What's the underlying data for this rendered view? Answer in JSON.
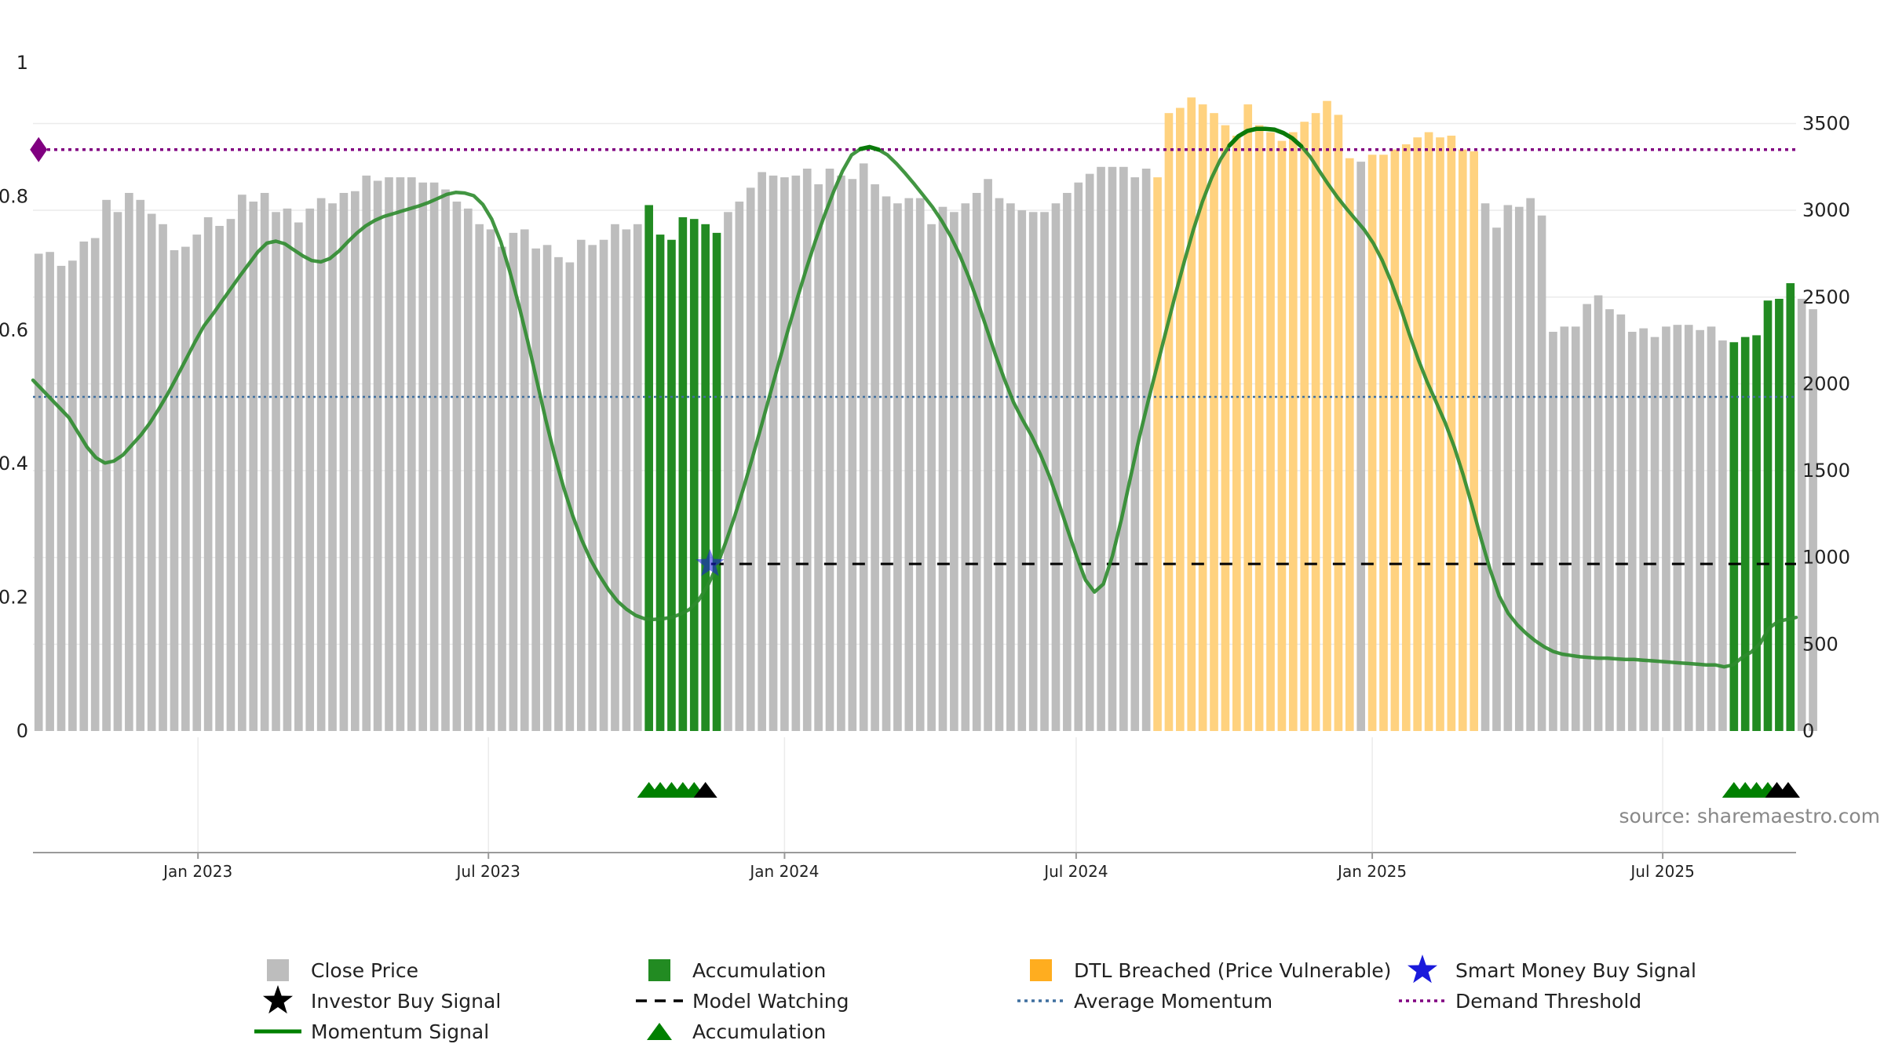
{
  "chart_data": {
    "type": "bar",
    "title": "",
    "source": "source: sharemaestro.com",
    "left_axis": {
      "ylim": [
        0,
        1
      ],
      "ticks": [
        "0",
        "0.2",
        "0.4",
        "0.6",
        "0.8",
        "1"
      ],
      "tick_values": [
        0,
        0.2,
        0.4,
        0.6,
        0.8,
        1
      ]
    },
    "right_axis": {
      "ylim": [
        0,
        3850
      ],
      "ticks": [
        "0",
        "500",
        "1000",
        "1500",
        "2000",
        "2500",
        "3000",
        "3500"
      ],
      "tick_values": [
        0,
        500,
        1000,
        1500,
        2000,
        2500,
        3000,
        3500
      ]
    },
    "x_axis": {
      "range": [
        0,
        156
      ],
      "tick_labels": [
        "Jan 2023",
        "Jul 2023",
        "Jan 2024",
        "Jul 2024",
        "Jan 2025",
        "Jul 2025"
      ],
      "tick_positions": [
        14.6,
        40.3,
        66.5,
        92.3,
        118.5,
        144.2
      ]
    },
    "series": [
      {
        "name": "Close Price",
        "axis": "right",
        "color": "#bdbdbd",
        "values": [
          2750,
          2760,
          2680,
          2710,
          2820,
          2840,
          3060,
          2990,
          3100,
          3060,
          2980,
          2920,
          2770,
          2790,
          2860,
          2960,
          2910,
          2950,
          3090,
          3050,
          3100,
          2990,
          3010,
          2930,
          3010,
          3070,
          3040,
          3100,
          3110,
          3200,
          3170,
          3190,
          3190,
          3190,
          3160,
          3160,
          3120,
          3050,
          3010,
          2920,
          2890,
          2790,
          2870,
          2890,
          2780,
          2800,
          2730,
          2700,
          2830,
          2800,
          2830,
          2920,
          2890,
          2920,
          3030,
          2860,
          2830,
          2960,
          2950,
          2920,
          2870,
          2990,
          3050,
          3130,
          3220,
          3200,
          3190,
          3200,
          3240,
          3150,
          3240,
          3200,
          3180,
          3270,
          3150,
          3080,
          3040,
          3070,
          3070,
          2920,
          3020,
          2990,
          3040,
          3100,
          3180,
          3070,
          3040,
          3000,
          2990,
          2990,
          3040,
          3100,
          3160,
          3210,
          3250,
          3250,
          3250,
          3190,
          3240,
          3190,
          3560,
          3590,
          3650,
          3610,
          3560,
          3490,
          3430,
          3610,
          3490,
          3450,
          3400,
          3450,
          3510,
          3560,
          3630,
          3550,
          3300,
          3280,
          3320,
          3320,
          3350,
          3380,
          3420,
          3450,
          3420,
          3430,
          3350,
          3340,
          3040,
          2900,
          3030,
          3020,
          3070,
          2970,
          2300,
          2330,
          2330,
          2460,
          2510,
          2430,
          2400,
          2300,
          2320,
          2270,
          2330,
          2340,
          2340,
          2310,
          2330,
          2250,
          2240,
          2270,
          2280,
          2480,
          2490,
          2580,
          2490,
          2430
        ]
      },
      {
        "name": "Momentum Signal",
        "axis": "left",
        "color": "#2e8b2e",
        "values": [
          0.525,
          0.511,
          0.497,
          0.483,
          0.469,
          0.447,
          0.425,
          0.409,
          0.401,
          0.404,
          0.413,
          0.428,
          0.443,
          0.461,
          0.482,
          0.505,
          0.53,
          0.556,
          0.582,
          0.606,
          0.624,
          0.643,
          0.662,
          0.681,
          0.699,
          0.717,
          0.73,
          0.733,
          0.729,
          0.72,
          0.711,
          0.704,
          0.702,
          0.707,
          0.718,
          0.732,
          0.745,
          0.756,
          0.764,
          0.77,
          0.774,
          0.778,
          0.782,
          0.786,
          0.791,
          0.797,
          0.803,
          0.806,
          0.805,
          0.801,
          0.788,
          0.766,
          0.732,
          0.688,
          0.638,
          0.583,
          0.525,
          0.466,
          0.412,
          0.364,
          0.322,
          0.286,
          0.256,
          0.232,
          0.211,
          0.194,
          0.182,
          0.173,
          0.168,
          0.167,
          0.168,
          0.17,
          0.175,
          0.182,
          0.196,
          0.217,
          0.246,
          0.282,
          0.321,
          0.364,
          0.41,
          0.458,
          0.507,
          0.555,
          0.603,
          0.649,
          0.693,
          0.734,
          0.772,
          0.807,
          0.838,
          0.862,
          0.871,
          0.874,
          0.87,
          0.862,
          0.849,
          0.834,
          0.818,
          0.801,
          0.784,
          0.764,
          0.741,
          0.713,
          0.68,
          0.643,
          0.603,
          0.563,
          0.526,
          0.492,
          0.466,
          0.442,
          0.414,
          0.381,
          0.343,
          0.302,
          0.262,
          0.226,
          0.208,
          0.22,
          0.262,
          0.317,
          0.379,
          0.44,
          0.495,
          0.548,
          0.601,
          0.653,
          0.703,
          0.75,
          0.792,
          0.827,
          0.855,
          0.876,
          0.89,
          0.898,
          0.901,
          0.901,
          0.9,
          0.895,
          0.887,
          0.875,
          0.859,
          0.838,
          0.818,
          0.799,
          0.782,
          0.766,
          0.75,
          0.73,
          0.704,
          0.672,
          0.635,
          0.594,
          0.556,
          0.522,
          0.492,
          0.461,
          0.425,
          0.383,
          0.336,
          0.287,
          0.241,
          0.202,
          0.176,
          0.159,
          0.146,
          0.135,
          0.126,
          0.119,
          0.115,
          0.113,
          0.111,
          0.11,
          0.109,
          0.109,
          0.108,
          0.107,
          0.107,
          0.106,
          0.105,
          0.104,
          0.103,
          0.102,
          0.101,
          0.1,
          0.099,
          0.099,
          0.096,
          0.099,
          0.11,
          0.118,
          0.131,
          0.154,
          0.164,
          0.167,
          0.17
        ]
      },
      {
        "name": "Average Momentum",
        "axis": "left",
        "color": "#3f6f9f",
        "value": 0.5
      },
      {
        "name": "Demand Threshold",
        "axis": "left",
        "color": "#800080",
        "value": 0.87
      },
      {
        "name": "Model Watching",
        "axis": "left",
        "color": "#000000",
        "value": 0.25,
        "x_start": 60,
        "x_end": 156
      }
    ],
    "accumulation_bars": [
      54,
      55,
      56,
      57,
      58,
      59,
      60,
      150,
      151,
      152,
      153,
      154,
      155
    ],
    "dtl_breached_bars": [
      99,
      100,
      101,
      102,
      103,
      104,
      105,
      106,
      107,
      108,
      109,
      110,
      111,
      112,
      113,
      114,
      115,
      116,
      118,
      119,
      120,
      121,
      122,
      123,
      124,
      125,
      126,
      127
    ],
    "accumulation_markers": [
      54.5,
      55.5,
      56.5,
      57.5,
      58.5,
      150.5,
      151.5,
      152.5,
      153.5
    ],
    "investor_markers": [
      59.5,
      154.3,
      155.3
    ],
    "smart_money_signal": {
      "x": 59.9,
      "y": 0.25
    },
    "demand_threshold_marker": {
      "x": 0.5,
      "y": 0.87
    },
    "colors": {
      "close": "#bdbdbd",
      "accumulation": "#228b22",
      "dtl": "#ffd27f",
      "momentum": "#2e8b2e",
      "momentum_strong": "#0a7a0a",
      "average": "#3f6f9f",
      "demand": "#800080",
      "smart_money": "#1a1adb",
      "investor": "#000000",
      "marker_accum": "#008000"
    },
    "legend": [
      {
        "label": "Close Price",
        "symbol": "square",
        "color": "#bdbdbd"
      },
      {
        "label": "Accumulation",
        "symbol": "square",
        "color": "#228b22"
      },
      {
        "label": "DTL Breached (Price Vulnerable)",
        "symbol": "square",
        "color": "#ffad1f"
      },
      {
        "label": "Smart Money Buy Signal",
        "symbol": "star",
        "color": "#1a1adb"
      },
      {
        "label": "Investor Buy Signal",
        "symbol": "star",
        "color": "#000000"
      },
      {
        "label": "Model Watching",
        "symbol": "dash",
        "color": "#000000"
      },
      {
        "label": "Average Momentum",
        "symbol": "dot",
        "color": "#3f6f9f"
      },
      {
        "label": "Demand Threshold",
        "symbol": "dot",
        "color": "#800080"
      },
      {
        "label": "Momentum Signal",
        "symbol": "line",
        "color": "#008000"
      },
      {
        "label": "Accumulation",
        "symbol": "triangle",
        "color": "#008000"
      }
    ]
  }
}
